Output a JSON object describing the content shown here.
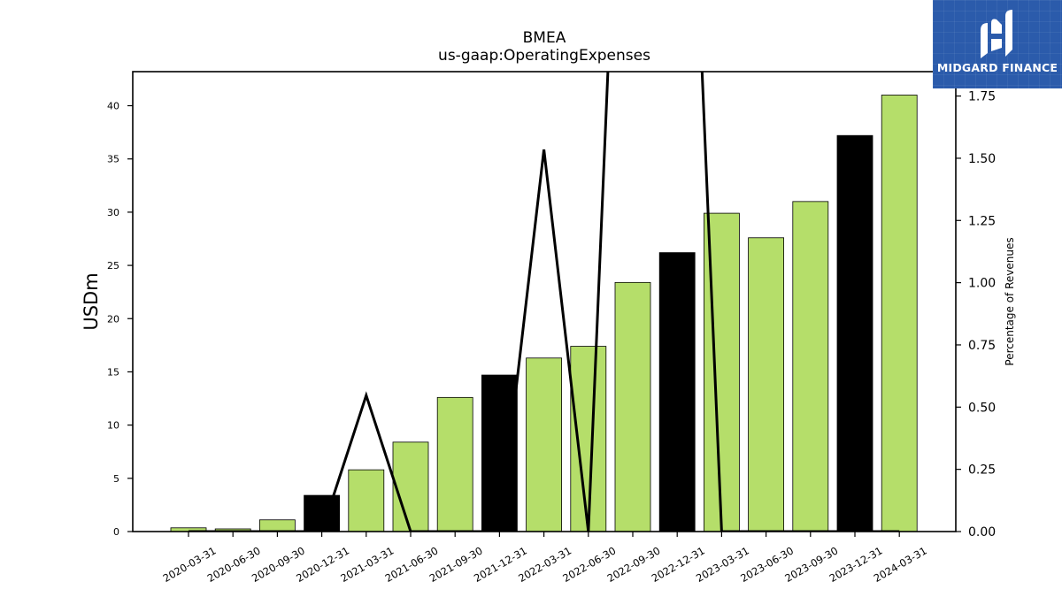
{
  "chart_data": {
    "type": "bar",
    "title": "BMEA",
    "subtitle": "us-gaap:OperatingExpenses",
    "ylabel": "USDm",
    "y2label": "Percentage of Revenues",
    "ylim": [
      0,
      43.2
    ],
    "y2lim": [
      0,
      1.848
    ],
    "yticks": [
      0,
      5,
      10,
      15,
      20,
      25,
      30,
      35,
      40
    ],
    "y2ticks": [
      "0.00",
      "0.25",
      "0.50",
      "0.75",
      "1.00",
      "1.25",
      "1.50",
      "1.75"
    ],
    "categories": [
      "2020-03-31",
      "2020-06-30",
      "2020-09-30",
      "2020-12-31",
      "2021-03-31",
      "2021-06-30",
      "2021-09-30",
      "2021-12-31",
      "2022-03-31",
      "2022-06-30",
      "2022-09-30",
      "2022-12-31",
      "2023-03-31",
      "2023-06-30",
      "2023-09-30",
      "2023-12-31",
      "2024-03-31"
    ],
    "values": [
      0.35,
      0.25,
      1.1,
      3.4,
      5.8,
      8.4,
      12.6,
      14.7,
      16.3,
      17.4,
      23.4,
      26.2,
      29.9,
      27.6,
      31.0,
      37.2,
      41.0
    ],
    "bar_colors": [
      "#b5de6a",
      "#b5de6a",
      "#b5de6a",
      "#000000",
      "#b5de6a",
      "#b5de6a",
      "#b5de6a",
      "#000000",
      "#b5de6a",
      "#b5de6a",
      "#b5de6a",
      "#000000",
      "#b5de6a",
      "#b5de6a",
      "#b5de6a",
      "#000000",
      "#b5de6a"
    ],
    "line_series": {
      "axis": "right",
      "color": "#000000",
      "values": [
        0.0,
        0.0,
        0.0,
        0.0,
        0.547,
        0.0,
        0.0,
        0.0,
        1.535,
        0.0,
        4.2,
        4.2,
        0.0,
        0.0,
        0.0,
        0.0,
        0.0
      ]
    },
    "grid": false,
    "legend": "none"
  },
  "logo": {
    "text": "MIDGARD FINANCE",
    "background": "#2b5bab",
    "icon": "midgard-logo-icon"
  }
}
